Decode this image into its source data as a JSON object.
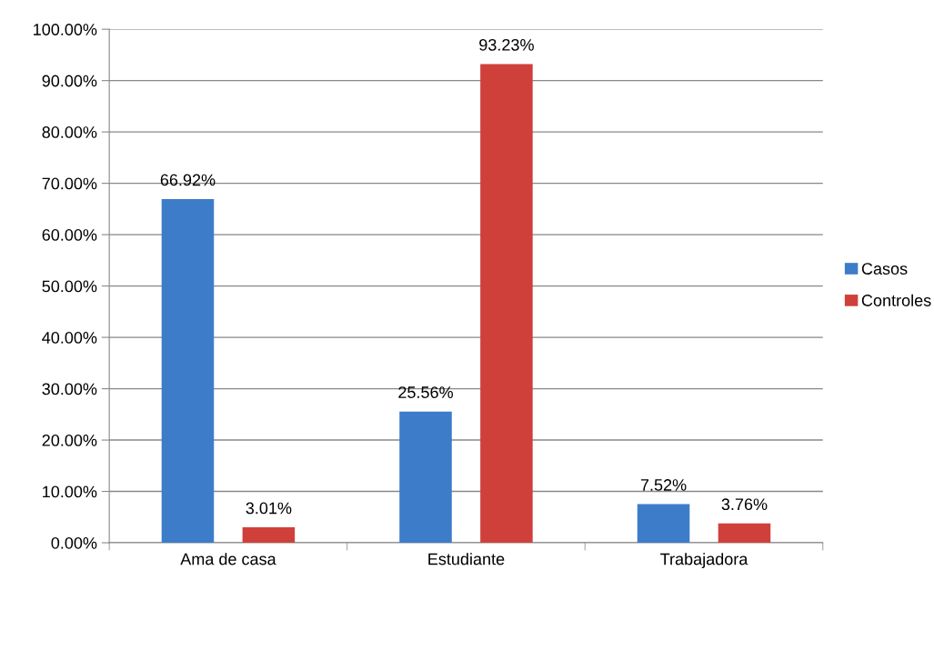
{
  "chart_data": {
    "type": "bar",
    "categories": [
      "Ama de casa",
      "Estudiante",
      "Trabajadora"
    ],
    "series": [
      {
        "name": "Casos",
        "color": "#3d7cc9",
        "values": [
          66.92,
          25.56,
          7.52
        ],
        "value_labels": [
          "66.92%",
          "25.56%",
          "7.52%"
        ]
      },
      {
        "name": "Controles",
        "color": "#d0403a",
        "values": [
          3.01,
          93.23,
          3.76
        ],
        "value_labels": [
          "3.01%",
          "93.23%",
          "3.76%"
        ]
      }
    ],
    "ylim": [
      0,
      100
    ],
    "yticks": [
      {
        "value": 0,
        "label": "0.00%"
      },
      {
        "value": 10,
        "label": "10.00%"
      },
      {
        "value": 20,
        "label": "20.00%"
      },
      {
        "value": 30,
        "label": "30.00%"
      },
      {
        "value": 40,
        "label": "40.00%"
      },
      {
        "value": 50,
        "label": "50.00%"
      },
      {
        "value": 60,
        "label": "60.00%"
      },
      {
        "value": 70,
        "label": "70.00%"
      },
      {
        "value": 80,
        "label": "80.00%"
      },
      {
        "value": 90,
        "label": "90.00%"
      },
      {
        "value": 100,
        "label": "100.00%"
      }
    ],
    "grid": "y",
    "legend": "right"
  }
}
